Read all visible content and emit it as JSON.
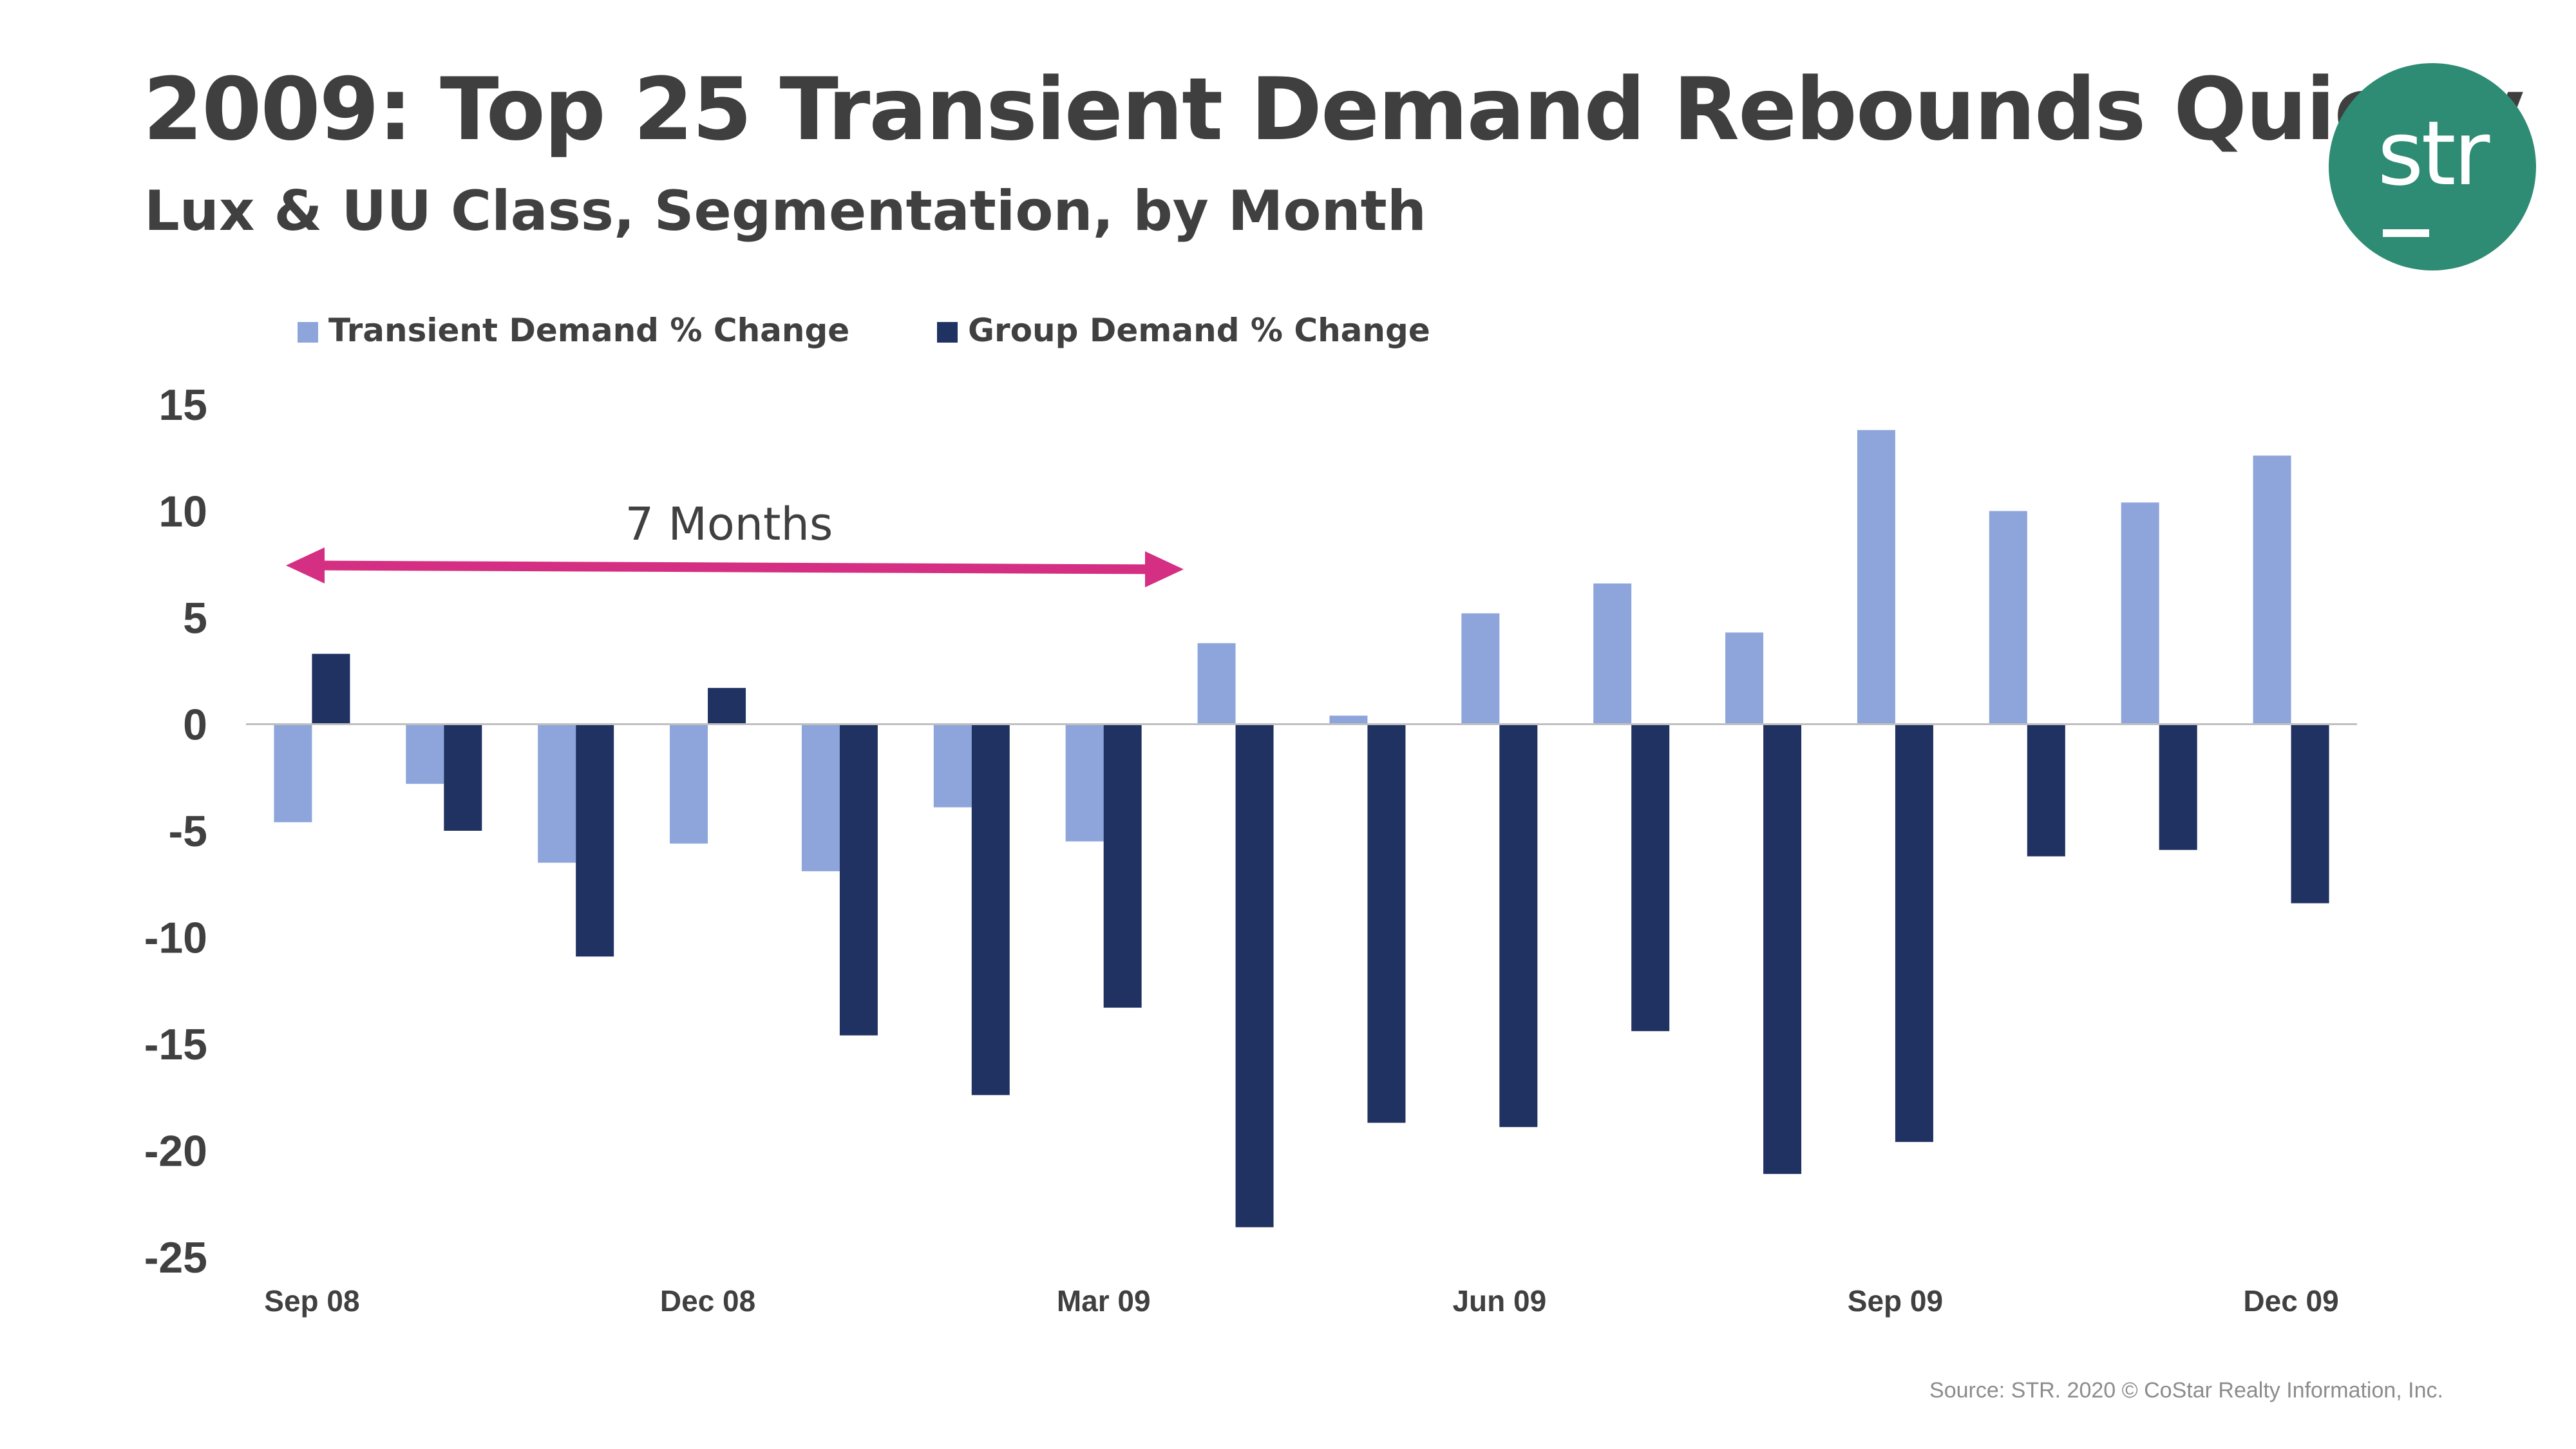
{
  "header": {
    "title": "2009: Top 25 Transient Demand Rebounds Quickly",
    "subtitle": "Lux & UU Class, Segmentation, by Month"
  },
  "logo": {
    "text": "str",
    "color": "#2e8b74"
  },
  "footer": {
    "source": "Source: STR. 2020 © CoStar Realty Information, Inc."
  },
  "chart_data": {
    "type": "bar",
    "categories": [
      "Sep 08",
      "Oct 08",
      "Nov 08",
      "Dec 08",
      "Jan 09",
      "Feb 09",
      "Mar 09",
      "Apr 09",
      "May 09",
      "Jun 09",
      "Jul 09",
      "Aug 09",
      "Sep 09",
      "Oct 09",
      "Nov 09",
      "Dec 09"
    ],
    "x_tick_labels": [
      "Sep 08",
      "",
      "",
      "Dec 08",
      "",
      "",
      "Mar 09",
      "",
      "",
      "Jun 09",
      "",
      "",
      "Sep 09",
      "",
      "",
      "Dec 09"
    ],
    "series": [
      {
        "name": "Transient Demand % Change",
        "color": "#8ea5dc",
        "values": [
          -4.6,
          -2.8,
          -6.5,
          -5.6,
          -6.9,
          -3.9,
          -5.5,
          3.8,
          0.4,
          5.2,
          6.6,
          4.3,
          13.8,
          10.0,
          10.4,
          12.6
        ]
      },
      {
        "name": "Group Demand % Change",
        "color": "#203262",
        "values": [
          3.3,
          -5.0,
          -10.9,
          1.7,
          -14.6,
          -17.4,
          -13.3,
          -23.6,
          -18.7,
          -18.9,
          -14.4,
          -21.1,
          -19.6,
          -6.2,
          -5.9,
          -8.4
        ]
      }
    ],
    "yticks": [
      15,
      10,
      5,
      0,
      -5,
      -10,
      -15,
      -20,
      -25
    ],
    "ylim": [
      -25,
      15
    ],
    "xlabel": "",
    "ylabel": "",
    "grid": false,
    "legend_position": "top-left",
    "annotation": {
      "text": "7 Months",
      "from": "Sep 08",
      "to": "Apr 09",
      "color": "#d42f82"
    }
  }
}
